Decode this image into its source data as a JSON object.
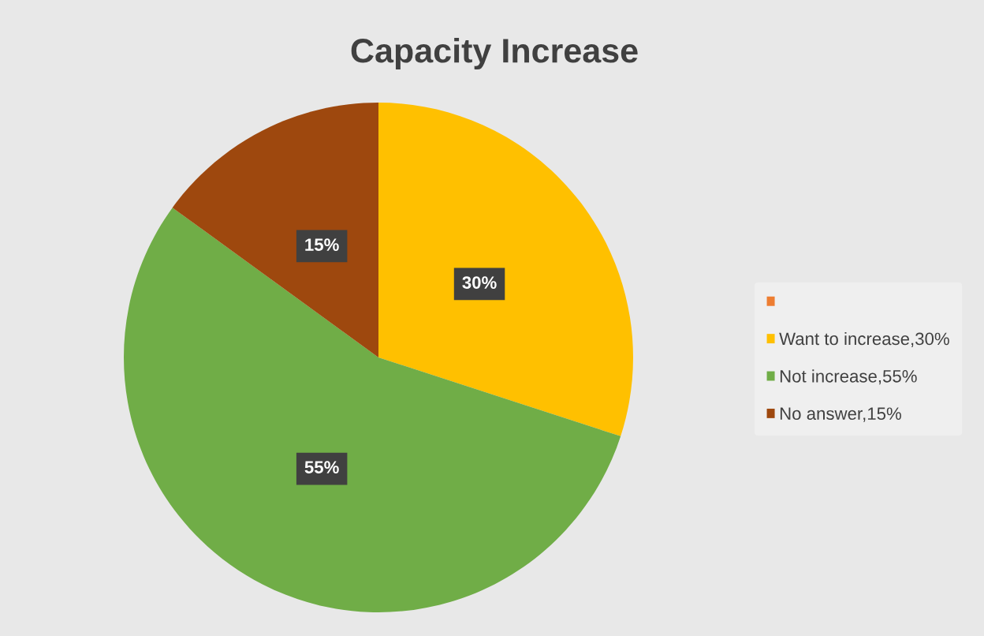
{
  "chart_data": {
    "type": "pie",
    "title": "Capacity Increase",
    "categories": [
      null,
      "Want to increase,30%",
      "Not increase,55%",
      "No answer,15%"
    ],
    "values": [
      0,
      30,
      55,
      15
    ],
    "colors": [
      "#ed7d31",
      "#ffc000",
      "#70ad47",
      "#9e480e"
    ],
    "value_labels": [
      null,
      "30%",
      "55%",
      "15%"
    ],
    "legend": "right"
  }
}
